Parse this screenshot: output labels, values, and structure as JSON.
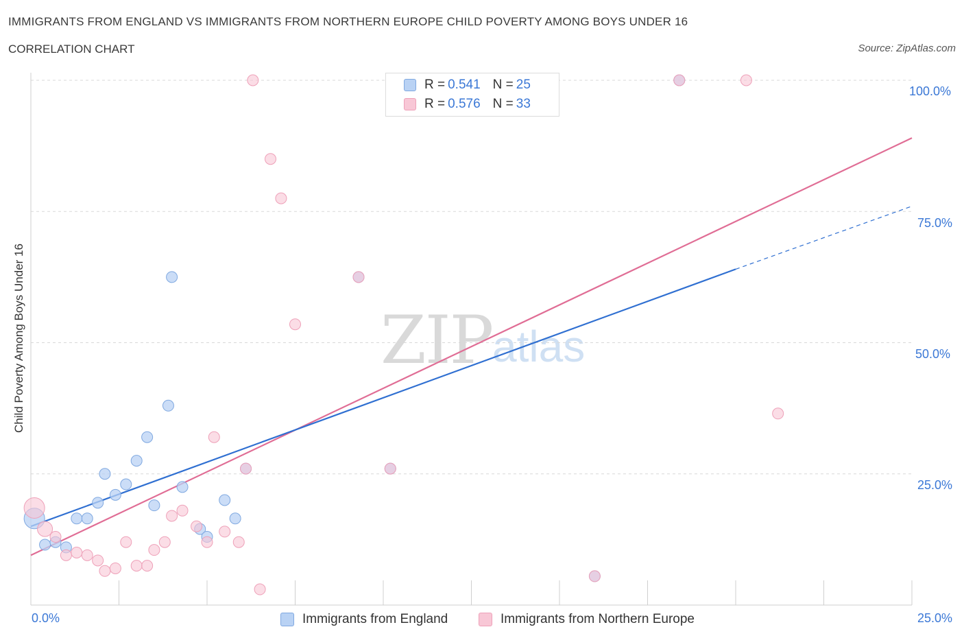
{
  "header": {
    "title": "IMMIGRANTS FROM ENGLAND VS IMMIGRANTS FROM NORTHERN EUROPE CHILD POVERTY AMONG BOYS UNDER 16",
    "subtitle": "CORRELATION CHART",
    "source": "Source: ZipAtlas.com"
  },
  "watermark": {
    "zip": "ZIP",
    "atlas": "atlas"
  },
  "legend_top": {
    "r_label": "R =",
    "n_label": "N =",
    "rows": [
      {
        "r": "0.541",
        "n": "25"
      },
      {
        "r": "0.576",
        "n": "33"
      }
    ]
  },
  "colors": {
    "england_fill": "#b9d2f4",
    "england_stroke": "#7fa8e0",
    "england_line": "#2f6fd1",
    "neu_fill": "#f8c7d6",
    "neu_stroke": "#eea0b8",
    "neu_line": "#e06d95",
    "tick_text": "#3b78d6"
  },
  "chart_data": {
    "type": "scatter",
    "title": "IMMIGRANTS FROM ENGLAND VS IMMIGRANTS FROM NORTHERN EUROPE CHILD POVERTY AMONG BOYS UNDER 16",
    "xlabel": "",
    "ylabel": "Child Poverty Among Boys Under 16",
    "xlim": [
      0,
      25
    ],
    "ylim": [
      0,
      100
    ],
    "x_tick_labels": [
      "0.0%",
      "25.0%"
    ],
    "y_tick_labels": [
      "25.0%",
      "50.0%",
      "75.0%",
      "100.0%"
    ],
    "y_ticks": [
      25,
      50,
      75,
      100
    ],
    "grid": true,
    "legend_position": "bottom",
    "series": [
      {
        "name": "Immigrants from England",
        "points": [
          [
            0.1,
            16.5
          ],
          [
            0.4,
            11.5
          ],
          [
            0.7,
            12
          ],
          [
            1.0,
            11
          ],
          [
            1.3,
            16.5
          ],
          [
            1.6,
            16.5
          ],
          [
            1.9,
            19.5
          ],
          [
            2.1,
            25
          ],
          [
            2.4,
            21
          ],
          [
            2.7,
            23
          ],
          [
            3.0,
            27.5
          ],
          [
            3.3,
            32
          ],
          [
            3.5,
            19
          ],
          [
            3.9,
            38
          ],
          [
            4.0,
            62.5
          ],
          [
            4.3,
            22.5
          ],
          [
            4.8,
            14.5
          ],
          [
            5.0,
            13
          ],
          [
            5.5,
            20
          ],
          [
            5.8,
            16.5
          ],
          [
            6.1,
            26
          ],
          [
            9.3,
            62.5
          ],
          [
            10.2,
            26
          ],
          [
            16.0,
            5.5
          ],
          [
            18.4,
            100
          ]
        ],
        "trend": {
          "x": [
            0,
            20
          ],
          "y": [
            15,
            64
          ],
          "dashed_to": [
            25,
            76
          ]
        }
      },
      {
        "name": "Immigrants from Northern Europe",
        "points": [
          [
            0.1,
            18.5
          ],
          [
            0.4,
            14.5
          ],
          [
            0.7,
            13
          ],
          [
            1.0,
            9.5
          ],
          [
            1.3,
            10
          ],
          [
            1.6,
            9.5
          ],
          [
            1.9,
            8.5
          ],
          [
            2.1,
            6.5
          ],
          [
            2.4,
            7
          ],
          [
            2.7,
            12
          ],
          [
            3.0,
            7.5
          ],
          [
            3.3,
            7.5
          ],
          [
            3.5,
            10.5
          ],
          [
            3.8,
            12
          ],
          [
            4.0,
            17
          ],
          [
            4.3,
            18
          ],
          [
            4.7,
            15
          ],
          [
            5.0,
            12
          ],
          [
            5.2,
            32
          ],
          [
            5.5,
            14
          ],
          [
            5.9,
            12
          ],
          [
            6.1,
            26
          ],
          [
            6.3,
            100
          ],
          [
            6.5,
            3
          ],
          [
            6.8,
            85
          ],
          [
            7.1,
            77.5
          ],
          [
            7.5,
            53.5
          ],
          [
            9.3,
            62.5
          ],
          [
            10.2,
            26
          ],
          [
            16.0,
            5.5
          ],
          [
            18.4,
            100
          ],
          [
            20.3,
            100
          ],
          [
            21.2,
            36.5
          ]
        ],
        "trend": {
          "x": [
            0,
            25
          ],
          "y": [
            9.5,
            89
          ]
        }
      }
    ]
  }
}
